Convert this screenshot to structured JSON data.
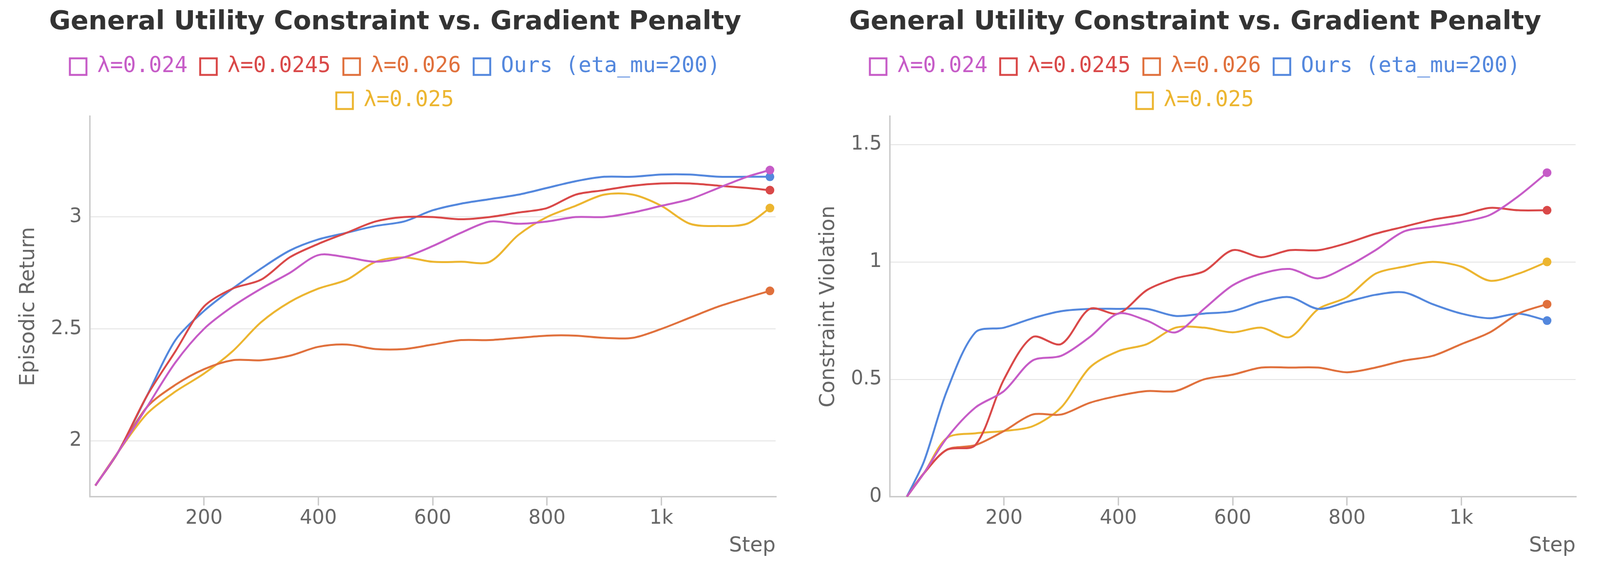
{
  "chart_data": [
    {
      "type": "line",
      "title": "General Utility Constraint vs. Gradient Penalty",
      "legend": "top",
      "grid": true,
      "x_label": "Step",
      "y_label": "Episodic Return",
      "xlim": [
        0,
        1200
      ],
      "xticks": [
        200,
        400,
        600,
        800,
        {
          "value": 1000,
          "label": "1k"
        }
      ],
      "ylim": [
        1.75,
        3.45
      ],
      "yticks": [
        2,
        2.5,
        3
      ],
      "x": [
        10,
        50,
        100,
        150,
        200,
        250,
        300,
        350,
        400,
        450,
        500,
        550,
        600,
        650,
        700,
        750,
        800,
        850,
        900,
        950,
        1000,
        1050,
        1100,
        1150,
        1190
      ],
      "series": [
        {
          "name": "λ=0.024",
          "color": "#c65bc7",
          "values": [
            1.8,
            1.95,
            2.15,
            2.35,
            2.5,
            2.6,
            2.68,
            2.75,
            2.83,
            2.82,
            2.8,
            2.82,
            2.87,
            2.93,
            2.98,
            2.97,
            2.98,
            3.0,
            3.0,
            3.02,
            3.05,
            3.08,
            3.13,
            3.18,
            3.21
          ]
        },
        {
          "name": "λ=0.0245",
          "color": "#d94848",
          "values": [
            1.8,
            1.95,
            2.2,
            2.4,
            2.6,
            2.68,
            2.72,
            2.82,
            2.88,
            2.93,
            2.98,
            3.0,
            3.0,
            2.99,
            3.0,
            3.02,
            3.04,
            3.1,
            3.12,
            3.14,
            3.15,
            3.15,
            3.14,
            3.13,
            3.12
          ]
        },
        {
          "name": "λ=0.026",
          "color": "#e0703c",
          "values": [
            1.8,
            1.95,
            2.15,
            2.25,
            2.32,
            2.36,
            2.36,
            2.38,
            2.42,
            2.43,
            2.41,
            2.41,
            2.43,
            2.45,
            2.45,
            2.46,
            2.47,
            2.47,
            2.46,
            2.46,
            2.5,
            2.55,
            2.6,
            2.64,
            2.67
          ]
        },
        {
          "name": "Ours (eta_mu=200)",
          "color": "#5387dd",
          "values": [
            1.8,
            1.95,
            2.2,
            2.45,
            2.58,
            2.68,
            2.77,
            2.85,
            2.9,
            2.93,
            2.96,
            2.98,
            3.03,
            3.06,
            3.08,
            3.1,
            3.13,
            3.16,
            3.18,
            3.18,
            3.19,
            3.19,
            3.18,
            3.18,
            3.18
          ]
        },
        {
          "name": "λ=0.025",
          "color": "#ecb52f",
          "values": [
            1.8,
            1.95,
            2.12,
            2.22,
            2.3,
            2.4,
            2.53,
            2.62,
            2.68,
            2.72,
            2.8,
            2.82,
            2.8,
            2.8,
            2.8,
            2.92,
            3.0,
            3.05,
            3.1,
            3.1,
            3.05,
            2.97,
            2.96,
            2.97,
            3.04
          ]
        }
      ]
    },
    {
      "type": "line",
      "title": "General Utility Constraint vs. Gradient Penalty",
      "legend": "top",
      "grid": true,
      "x_label": "Step",
      "y_label": "Constraint Violation",
      "xlim": [
        0,
        1200
      ],
      "xticks": [
        200,
        400,
        600,
        800,
        {
          "value": 1000,
          "label": "1k"
        }
      ],
      "ylim": [
        0,
        1.62
      ],
      "yticks": [
        0,
        0.5,
        1,
        1.5
      ],
      "x": [
        30,
        60,
        100,
        150,
        200,
        250,
        300,
        350,
        400,
        450,
        500,
        550,
        600,
        650,
        700,
        750,
        800,
        850,
        900,
        950,
        1000,
        1050,
        1100,
        1150
      ],
      "series": [
        {
          "name": "λ=0.024",
          "color": "#c65bc7",
          "values": [
            0,
            0.1,
            0.25,
            0.38,
            0.45,
            0.58,
            0.6,
            0.68,
            0.78,
            0.75,
            0.7,
            0.8,
            0.9,
            0.95,
            0.97,
            0.93,
            0.98,
            1.05,
            1.13,
            1.15,
            1.17,
            1.2,
            1.28,
            1.38
          ]
        },
        {
          "name": "λ=0.0245",
          "color": "#d94848",
          "values": [
            0,
            0.1,
            0.2,
            0.22,
            0.5,
            0.68,
            0.65,
            0.8,
            0.78,
            0.88,
            0.93,
            0.96,
            1.05,
            1.02,
            1.05,
            1.05,
            1.08,
            1.12,
            1.15,
            1.18,
            1.2,
            1.23,
            1.22,
            1.22
          ]
        },
        {
          "name": "λ=0.026",
          "color": "#e0703c",
          "values": [
            0,
            0.1,
            0.2,
            0.22,
            0.28,
            0.35,
            0.35,
            0.4,
            0.43,
            0.45,
            0.45,
            0.5,
            0.52,
            0.55,
            0.55,
            0.55,
            0.53,
            0.55,
            0.58,
            0.6,
            0.65,
            0.7,
            0.78,
            0.82
          ]
        },
        {
          "name": "Ours (eta_mu=200)",
          "color": "#5387dd",
          "values": [
            0,
            0.15,
            0.45,
            0.7,
            0.72,
            0.76,
            0.79,
            0.8,
            0.8,
            0.8,
            0.77,
            0.78,
            0.79,
            0.83,
            0.85,
            0.8,
            0.83,
            0.86,
            0.87,
            0.82,
            0.78,
            0.76,
            0.78,
            0.75
          ]
        },
        {
          "name": "λ=0.025",
          "color": "#ecb52f",
          "values": [
            0,
            0.1,
            0.25,
            0.27,
            0.28,
            0.3,
            0.38,
            0.55,
            0.62,
            0.65,
            0.72,
            0.72,
            0.7,
            0.72,
            0.68,
            0.8,
            0.85,
            0.95,
            0.98,
            1.0,
            0.98,
            0.92,
            0.95,
            1.0
          ]
        }
      ]
    }
  ]
}
